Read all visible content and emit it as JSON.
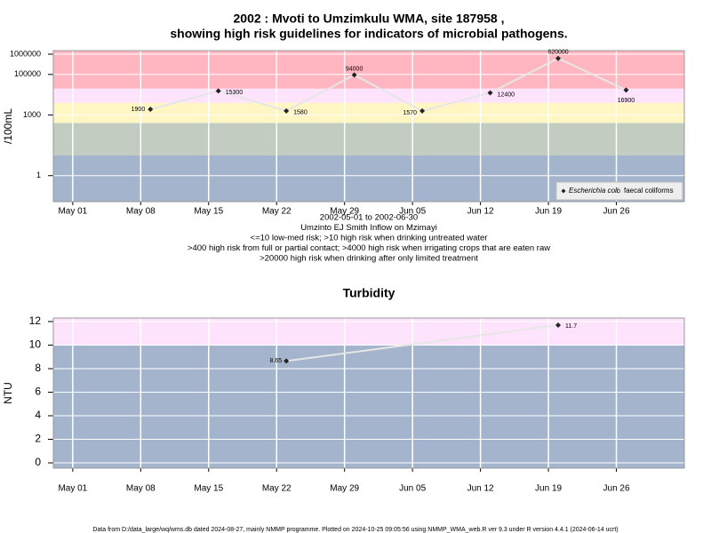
{
  "chart_data": [
    {
      "type": "line",
      "title": [
        "2002 : Mvoti to Umzimkulu WMA, site 187958 ,",
        "showing high risk guidelines for indicators of microbial pathogens."
      ],
      "y_label": "/100mL",
      "log_scale": true,
      "x": [
        "2002-05-09",
        "2002-05-16",
        "2002-05-23",
        "2002-05-30",
        "2002-06-06",
        "2002-06-13",
        "2002-06-20",
        "2002-06-27"
      ],
      "series": [
        {
          "name": "Escherichia coli",
          "color": "#222222",
          "line_color": "#e6e6e6",
          "values": [
            1900,
            15300,
            1580,
            94000,
            1570,
            12400,
            620000,
            16900
          ]
        },
        {
          "name": "faecal coliforms",
          "color": "#222222",
          "line_color": "#e6e6e6",
          "values": [
            null,
            null,
            null,
            null,
            null,
            null,
            null,
            null
          ]
        }
      ],
      "xlim": [
        "2002-04-29",
        "2002-07-03"
      ],
      "xticks": [
        {
          "value": "2002-05-01",
          "label": "May 01"
        },
        {
          "value": "2002-05-08",
          "label": "May 08"
        },
        {
          "value": "2002-05-15",
          "label": "May 15"
        },
        {
          "value": "2002-05-22",
          "label": "May 22"
        },
        {
          "value": "2002-05-29",
          "label": "May 29"
        },
        {
          "value": "2002-06-05",
          "label": "Jun 05"
        },
        {
          "value": "2002-06-12",
          "label": "Jun 12"
        },
        {
          "value": "2002-06-19",
          "label": "Jun 19"
        },
        {
          "value": "2002-06-26",
          "label": "Jun 26"
        }
      ],
      "ylim": [
        0.052,
        1500000
      ],
      "yticks": [
        1,
        1000,
        100000,
        1000000
      ],
      "thresholds": [
        10,
        400,
        4000,
        20000
      ],
      "band_colors": [
        "#a3b4cc",
        "#c2ccc0",
        "#fff6c4",
        "#fde3fb",
        "#ffb6c1"
      ],
      "grid": true,
      "legend": "bottom right",
      "notes": [
        "2002-05-01 to 2002-06-30",
        "Umzinto EJ Smith Inflow on Mzimayi",
        "<=10 low-med risk; >10 high risk when drinking untreated water",
        ">400 high risk from full or partial contact; >4000 high risk when irrigating crops that are eaten raw",
        ">20000 high risk when drinking after only limited treatment"
      ]
    },
    {
      "type": "line",
      "title": [
        "Turbidity"
      ],
      "y_label": "NTU",
      "log_scale": false,
      "x": [
        "2002-05-23",
        "2002-06-20"
      ],
      "series": [
        {
          "color": "#222222",
          "line_color": "#e6e6e6",
          "values": [
            8.65,
            11.7
          ]
        }
      ],
      "xlim": [
        "2002-04-29",
        "2002-07-03"
      ],
      "xticks": [
        {
          "value": "2002-05-01",
          "label": "May 01"
        },
        {
          "value": "2002-05-08",
          "label": "May 08"
        },
        {
          "value": "2002-05-15",
          "label": "May 15"
        },
        {
          "value": "2002-05-22",
          "label": "May 22"
        },
        {
          "value": "2002-05-29",
          "label": "May 29"
        },
        {
          "value": "2002-06-05",
          "label": "Jun 05"
        },
        {
          "value": "2002-06-12",
          "label": "Jun 12"
        },
        {
          "value": "2002-06-19",
          "label": "Jun 19"
        },
        {
          "value": "2002-06-26",
          "label": "Jun 26"
        }
      ],
      "ylim": [
        -0.45,
        12.3
      ],
      "yticks": [
        0,
        2,
        4,
        6,
        8,
        10,
        12
      ],
      "thresholds": [
        10
      ],
      "band_colors": [
        "#a3b4cc",
        "#fde3fb"
      ],
      "grid": true
    }
  ],
  "footer": "Data from D:/data_large/wq/wms.db dated 2024-08-27, mainly NMMP programme. Plotted on 2024-10-25 09:05:56 using NMMP_WMA_web.R ver 9.3 under R version 4.4.1 (2024-06-14 ucrt)"
}
